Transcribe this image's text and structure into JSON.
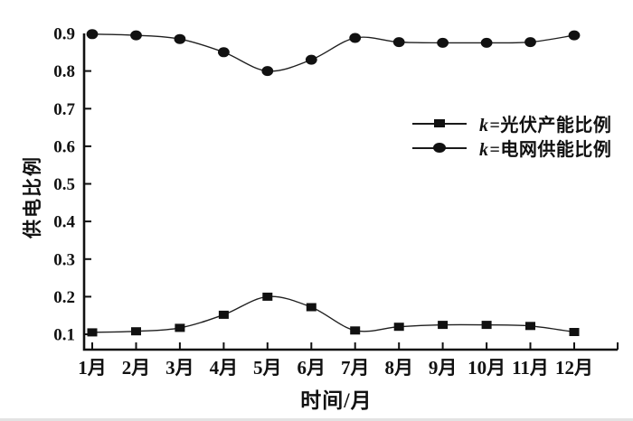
{
  "colors": {
    "ink": "#111111",
    "line": "#1f1f1f",
    "background": "#ffffff"
  },
  "chart_data": {
    "type": "line",
    "title": "",
    "xlabel": "时间/月",
    "ylabel": "供电比例",
    "categories": [
      "1月",
      "2月",
      "3月",
      "4月",
      "5月",
      "6月",
      "7月",
      "8月",
      "9月",
      "10月",
      "11月",
      "12月"
    ],
    "y_tick_labels": [
      "0.1",
      "0.2",
      "0.3",
      "0.4",
      "0.5",
      "0.6",
      "0.7",
      "0.8",
      "0.9"
    ],
    "ylim": [
      0.06,
      0.9
    ],
    "xlim_months": [
      1,
      12
    ],
    "grid": false,
    "legend_position": "center-right",
    "series": [
      {
        "name": "k=光伏产能比例",
        "marker": "square",
        "values": [
          0.105,
          0.108,
          0.117,
          0.152,
          0.2,
          0.172,
          0.11,
          0.12,
          0.125,
          0.125,
          0.122,
          0.106
        ]
      },
      {
        "name": "k=电网供能比例",
        "marker": "circle",
        "values": [
          0.898,
          0.895,
          0.885,
          0.85,
          0.8,
          0.83,
          0.888,
          0.877,
          0.875,
          0.875,
          0.877,
          0.895
        ]
      }
    ]
  },
  "legend": {
    "items": [
      {
        "symbol": "k",
        "label": "=光伏产能比例",
        "marker": "square"
      },
      {
        "symbol": "k",
        "label": "=电网供能比例",
        "marker": "circle"
      }
    ]
  }
}
